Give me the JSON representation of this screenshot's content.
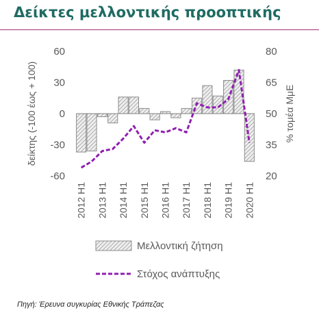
{
  "header": {
    "title": "Δείκτες μελλοντικής προοπτικής"
  },
  "footer": {
    "source": "Πηγή: Έρευνα συγκυρίας Εθνικής Τράπεζας"
  },
  "chart_data": {
    "type": "bar",
    "title": "Δείκτες μελλοντικής προοπτικής",
    "ylabel": "δείκτης (-100 έως + 100)",
    "y2label": "% τομέα ΜμΕ",
    "ylim": [
      -60,
      60
    ],
    "yticks": [
      -60,
      -30,
      0,
      30,
      60
    ],
    "y2lim": [
      20,
      80
    ],
    "y2ticks": [
      20,
      35,
      50,
      65,
      80
    ],
    "x_tick_labels": [
      "2012 H1",
      "2013 H1",
      "2014 H1",
      "2015 H1",
      "2016 H1",
      "2017 H1",
      "2018 H1",
      "2019 H1",
      "2020 H1"
    ],
    "categories": [
      "2012 H1",
      "2012 H2",
      "2013 H1",
      "2013 H2",
      "2014 H1",
      "2014 H2",
      "2015 H1",
      "2015 H2",
      "2016 H1",
      "2016 H2",
      "2017 H1",
      "2017 H2",
      "2018 H1",
      "2018 H2",
      "2019 H1",
      "2019 H2",
      "2020 H1"
    ],
    "series": [
      {
        "name": "Μελλοντική ζήτηση",
        "type": "bar",
        "axis": "left",
        "color": "#bfbfbf",
        "values": [
          -37,
          -36,
          -3,
          -9,
          16,
          16,
          5,
          -6,
          2,
          -4,
          5,
          15,
          27,
          17,
          32,
          42,
          -46
        ]
      },
      {
        "name": "Στόχος ανάπτυξης",
        "type": "line",
        "axis": "right",
        "style": "dashed",
        "color": "#8f1fb0",
        "values": [
          24,
          27,
          32,
          33,
          38,
          44,
          36,
          42,
          41,
          43,
          41,
          55,
          53,
          53,
          57,
          71,
          36
        ]
      }
    ],
    "legend": "bottom",
    "grid": false
  }
}
